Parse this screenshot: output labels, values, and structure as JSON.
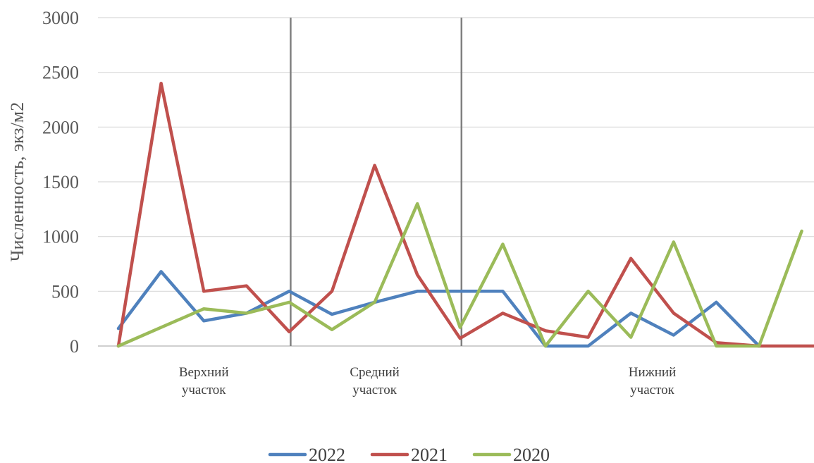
{
  "chart_data": {
    "type": "line",
    "ylabel": "Численность, экз/м2",
    "xlabel": "",
    "ylim": [
      0,
      3000
    ],
    "yticks": [
      0,
      500,
      1000,
      1500,
      2000,
      2500,
      3000
    ],
    "grid": true,
    "legend_position": "bottom",
    "x": [
      1,
      2,
      3,
      4,
      5,
      6,
      7,
      8,
      9,
      10,
      11,
      12,
      13,
      14,
      15,
      16,
      17,
      18
    ],
    "sections": [
      {
        "lines": [
          "Верхний",
          "участок"
        ],
        "from": 1,
        "to": 5
      },
      {
        "lines": [
          "Средний",
          "участок"
        ],
        "from": 5,
        "to": 9
      },
      {
        "lines": [
          "Нижний",
          "участок"
        ],
        "from": 9,
        "to": 18
      }
    ],
    "dividers_at": [
      5,
      9
    ],
    "series": [
      {
        "name": "2022",
        "color": "#4f81bd",
        "values": [
          160,
          680,
          230,
          300,
          500,
          290,
          400,
          500,
          500,
          500,
          0,
          0,
          300,
          100,
          400,
          0,
          null,
          null
        ]
      },
      {
        "name": "2021",
        "color": "#c0504d",
        "values": [
          0,
          2400,
          500,
          550,
          130,
          500,
          1650,
          650,
          70,
          300,
          140,
          80,
          800,
          300,
          30,
          0,
          0,
          0
        ]
      },
      {
        "name": "2020",
        "color": "#9bbb59",
        "values": [
          0,
          170,
          340,
          300,
          400,
          150,
          400,
          1300,
          170,
          930,
          0,
          500,
          80,
          950,
          0,
          0,
          1050,
          null
        ]
      }
    ]
  }
}
